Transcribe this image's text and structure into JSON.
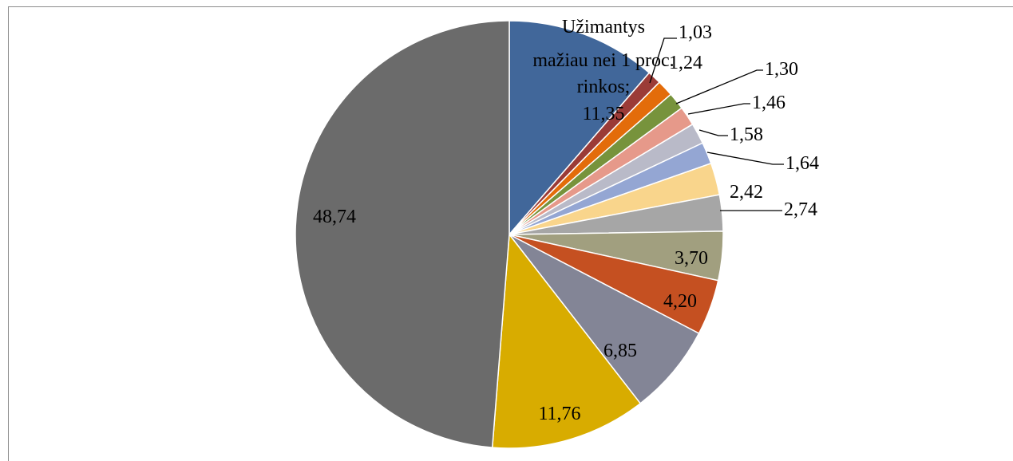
{
  "chart_data": {
    "type": "pie",
    "title": "",
    "slices": [
      {
        "label": "Užimantys mažiau nei 1 proc. rinkos; 11,35",
        "value": 11.35,
        "color": "#41679a"
      },
      {
        "label": "1,03",
        "value": 1.03,
        "color": "#9b3b37"
      },
      {
        "label": "1,24",
        "value": 1.24,
        "color": "#e36c0a"
      },
      {
        "label": "1,30",
        "value": 1.3,
        "color": "#77933c"
      },
      {
        "label": "1,46",
        "value": 1.46,
        "color": "#e6998a"
      },
      {
        "label": "1,58",
        "value": 1.58,
        "color": "#b9bac8"
      },
      {
        "label": "1,64",
        "value": 1.64,
        "color": "#94a6d3"
      },
      {
        "label": "2,42",
        "value": 2.42,
        "color": "#f9d58c"
      },
      {
        "label": "2,74",
        "value": 2.74,
        "color": "#a6a6a6"
      },
      {
        "label": "3,70",
        "value": 3.7,
        "color": "#a19f7f"
      },
      {
        "label": "4,20",
        "value": 4.2,
        "color": "#c55021"
      },
      {
        "label": "6,85",
        "value": 6.85,
        "color": "#838596"
      },
      {
        "label": "11,76",
        "value": 11.76,
        "color": "#d8ac00"
      },
      {
        "label": "48,74",
        "value": 48.74,
        "color": "#6b6b6b"
      }
    ],
    "legend": "none"
  }
}
